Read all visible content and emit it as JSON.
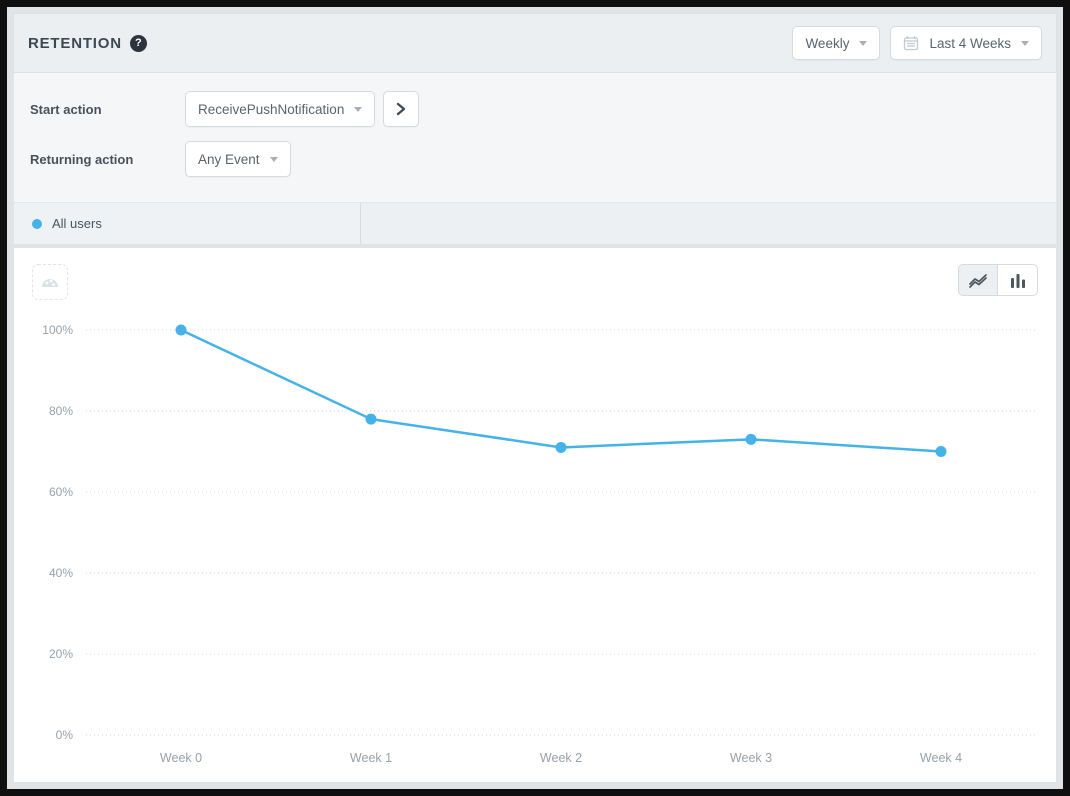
{
  "header": {
    "title": "RETENTION",
    "help_glyph": "?",
    "granularity_dropdown": {
      "value": "Weekly"
    },
    "date_range_dropdown": {
      "value": "Last 4 Weeks"
    }
  },
  "filters": {
    "start_action_label": "Start action",
    "start_action_value": "ReceivePushNotification",
    "returning_action_label": "Returning action",
    "returning_action_value": "Any Event"
  },
  "tabs": {
    "all_users": {
      "label": "All users",
      "dot_color": "#45b2e8"
    }
  },
  "chart_controls": {
    "left_button_icon": "gauge-icon",
    "chart_type_options": [
      "line",
      "bar"
    ],
    "active_chart_type": "line"
  },
  "chart_data": {
    "type": "line",
    "title": "",
    "categories": [
      "Week 0",
      "Week 1",
      "Week 2",
      "Week 3",
      "Week 4"
    ],
    "series": [
      {
        "name": "All users",
        "color": "#45b2e8",
        "values": [
          100,
          78,
          71,
          73,
          70
        ]
      }
    ],
    "xlabel": "",
    "ylabel": "",
    "ylim": [
      0,
      100
    ],
    "yticks": [
      0,
      20,
      40,
      60,
      80,
      100
    ],
    "ytick_format": "{v}%",
    "grid": "horizontal-dotted",
    "legend": "none"
  },
  "colors": {
    "accent_blue": "#45b2e8",
    "panel_header_bg": "#eceff1",
    "panel_filter_bg": "#f4f6f7",
    "tab_row_bg": "#edf0f2",
    "chart_bg": "#ffffff",
    "axis_text": "#98a1aa",
    "gridline": "#ced4d9",
    "frame": "#0f0f0f"
  }
}
